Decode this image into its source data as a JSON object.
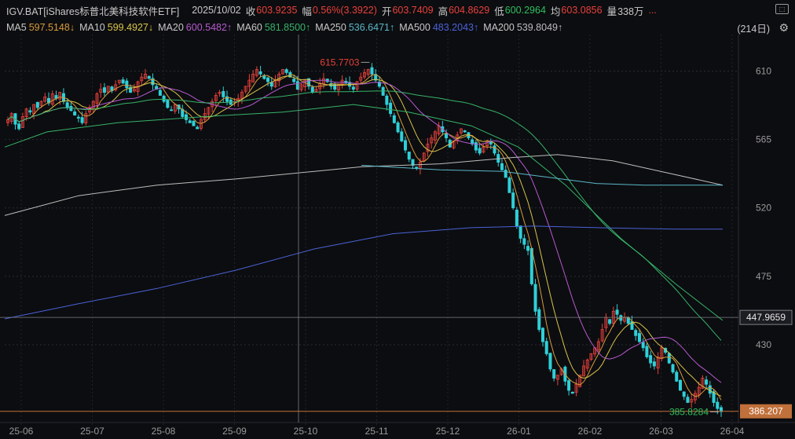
{
  "header": {
    "title": "IGV.BAT[iShares标普北美科技软件ETF]",
    "date": "2025/10/02",
    "close_label": "收",
    "close_value": "603.9235",
    "change_label": "幅",
    "change_value": "0.56%(3.3922)",
    "open_label": "开",
    "open_value": "603.7409",
    "high_label": "高",
    "high_value": "604.8629",
    "low_label": "低",
    "low_value": "600.2964",
    "avg_label": "均",
    "avg_value": "603.0856",
    "volume_label": "量",
    "volume_value": "338万",
    "more": "..."
  },
  "ma_bar": {
    "ma5_label": "MA5",
    "ma5_value": "597.5148↓",
    "ma10_label": "MA10",
    "ma10_value": "599.4927↓",
    "ma20_label": "MA20",
    "ma20_value": "600.5482↑",
    "ma60_label": "MA60",
    "ma60_value": "581.8500↑",
    "ma250_label": "MA250",
    "ma250_value": "536.6471↑",
    "ma500_label": "MA500",
    "ma500_value": "483.2043↑",
    "ma200_label": "MA200",
    "ma200_value": "539.8049↑",
    "period": "(214日)"
  },
  "icons": {
    "corner": "expand-icon",
    "settings": "gear-icon"
  },
  "colors": {
    "up": "#e8413c",
    "down": "#2fd0d8",
    "ma5": "#d89b3a",
    "ma10": "#d9c44a",
    "ma20": "#b65ad0",
    "ma60": "#36b36a",
    "ma250": "#5ab8c8",
    "ma500": "#4a62d8",
    "ma200": "#bdbdbd"
  },
  "chart_data": {
    "type": "candlestick",
    "x_tick_labels": [
      "25-06",
      "25-07",
      "25-08",
      "25-09",
      "25-10",
      "25-11",
      "25-12",
      "26-01",
      "26-02",
      "26-03",
      "26-04"
    ],
    "y_ticks": [
      610,
      565,
      520,
      475,
      430
    ],
    "ylim": [
      384,
      634
    ],
    "crosshair_price": "447.9659",
    "last_price_tag": "386.207",
    "high_annotation": "615.7703",
    "low_annotation": "385.8284",
    "closes": [
      578,
      582,
      575,
      572,
      580,
      585,
      583,
      588,
      586,
      590,
      593,
      589,
      595,
      592,
      596,
      590,
      586,
      584,
      581,
      579,
      576,
      582,
      586,
      590,
      595,
      598,
      596,
      600,
      597,
      601,
      604,
      602,
      599,
      596,
      598,
      603,
      606,
      608,
      605,
      601,
      598,
      594,
      590,
      586,
      584,
      588,
      585,
      580,
      578,
      576,
      574,
      572,
      578,
      582,
      586,
      590,
      594,
      596,
      593,
      590,
      588,
      590,
      592,
      596,
      600,
      604,
      608,
      611,
      608,
      605,
      603,
      600,
      604,
      608,
      611,
      609,
      606,
      603,
      598,
      601,
      604,
      600,
      596,
      598,
      602,
      605,
      603,
      600,
      598,
      601,
      604,
      602,
      600,
      598,
      603,
      606,
      609,
      611,
      608,
      604,
      600,
      594,
      588,
      582,
      576,
      570,
      564,
      558,
      552,
      548,
      546,
      550,
      556,
      562,
      566,
      570,
      574,
      570,
      566,
      560,
      564,
      568,
      572,
      570,
      566,
      562,
      558,
      556,
      560,
      564,
      562,
      556,
      550,
      545,
      540,
      530,
      520,
      508,
      500,
      496,
      492,
      470,
      452,
      440,
      432,
      424,
      414,
      408,
      410,
      414,
      406,
      400,
      398,
      404,
      410,
      416,
      420,
      424,
      428,
      432,
      440,
      448,
      444,
      452,
      450,
      446,
      448,
      444,
      440,
      436,
      432,
      428,
      422,
      418,
      416,
      422,
      428,
      425,
      418,
      412,
      406,
      400,
      396,
      392,
      394,
      398,
      402,
      408,
      404,
      398,
      392,
      388,
      386
    ]
  }
}
